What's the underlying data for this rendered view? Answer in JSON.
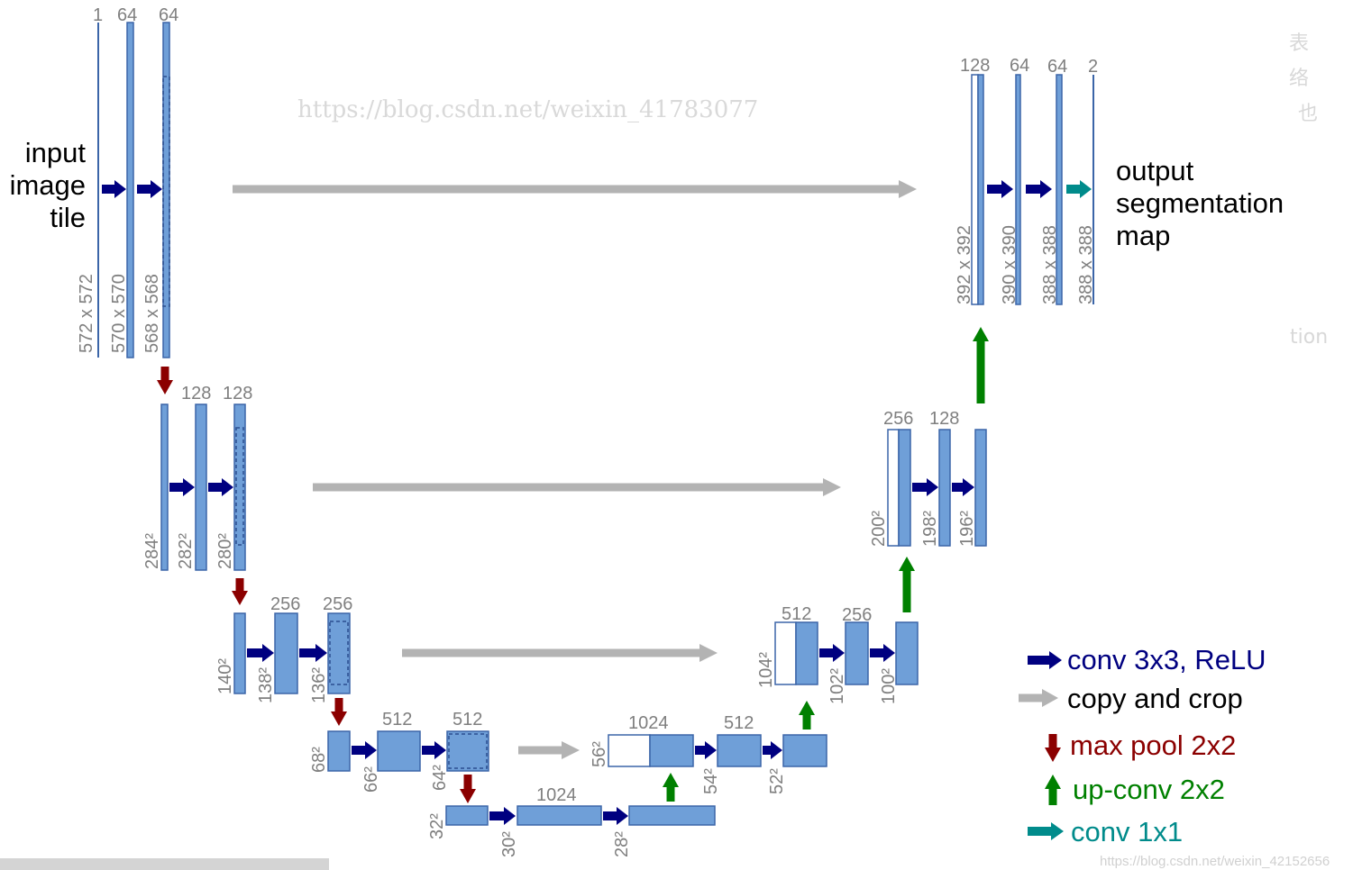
{
  "colors": {
    "bar_fill": "#6f9fd8",
    "bar_stroke": "#3b65a8",
    "conv_arrow": "#000080",
    "copy_arrow": "#b3b3b3",
    "pool_arrow": "#8b0000",
    "upconv_arrow": "#008000",
    "conv1x1_arrow": "#008b8b",
    "number_text": "#7f7f7f"
  },
  "input_label": [
    "input",
    "image",
    "tile"
  ],
  "output_label": [
    "output",
    "segmentation",
    "map"
  ],
  "contracting": [
    {
      "channels": [
        "1",
        "64",
        "64"
      ],
      "sizes": [
        "572 x 572",
        "570 x 570",
        "568 x 568"
      ]
    },
    {
      "channels": [
        "128",
        "128"
      ],
      "sizes": [
        "284²",
        "282²",
        "280²"
      ]
    },
    {
      "channels": [
        "256",
        "256"
      ],
      "sizes": [
        "140²",
        "138²",
        "136²"
      ]
    },
    {
      "channels": [
        "512",
        "512"
      ],
      "sizes": [
        "68²",
        "66²",
        "64²"
      ]
    }
  ],
  "bottleneck": {
    "channels": [
      "1024"
    ],
    "sizes": [
      "32²",
      "30²",
      "28²"
    ]
  },
  "expansive": [
    {
      "channels": [
        "1024",
        "512"
      ],
      "sizes": [
        "56²",
        "54²",
        "52²"
      ]
    },
    {
      "channels": [
        "512",
        "256"
      ],
      "sizes": [
        "104²",
        "102²",
        "100²"
      ]
    },
    {
      "channels": [
        "256",
        "128"
      ],
      "sizes": [
        "200²",
        "198²",
        "196²"
      ]
    },
    {
      "channels": [
        "128",
        "64",
        "64",
        "2"
      ],
      "sizes": [
        "392 x 392",
        "390 x 390",
        "388 x 388",
        "388 x 388"
      ]
    }
  ],
  "legend": [
    {
      "label": "conv 3x3, ReLU",
      "icon": "arrow-right-navy"
    },
    {
      "label": "copy and crop",
      "icon": "arrow-right-gray"
    },
    {
      "label": "max pool 2x2",
      "icon": "arrow-down-red"
    },
    {
      "label": "up-conv 2x2",
      "icon": "arrow-up-green"
    },
    {
      "label": "conv 1x1",
      "icon": "arrow-right-teal"
    }
  ],
  "background_text": [
    "表",
    "络",
    "也",
    "tion"
  ],
  "watermarks": [
    "https://blog.csdn.net/weixin_41783077",
    "https://blog.csdn.net/weixin_42152656"
  ]
}
